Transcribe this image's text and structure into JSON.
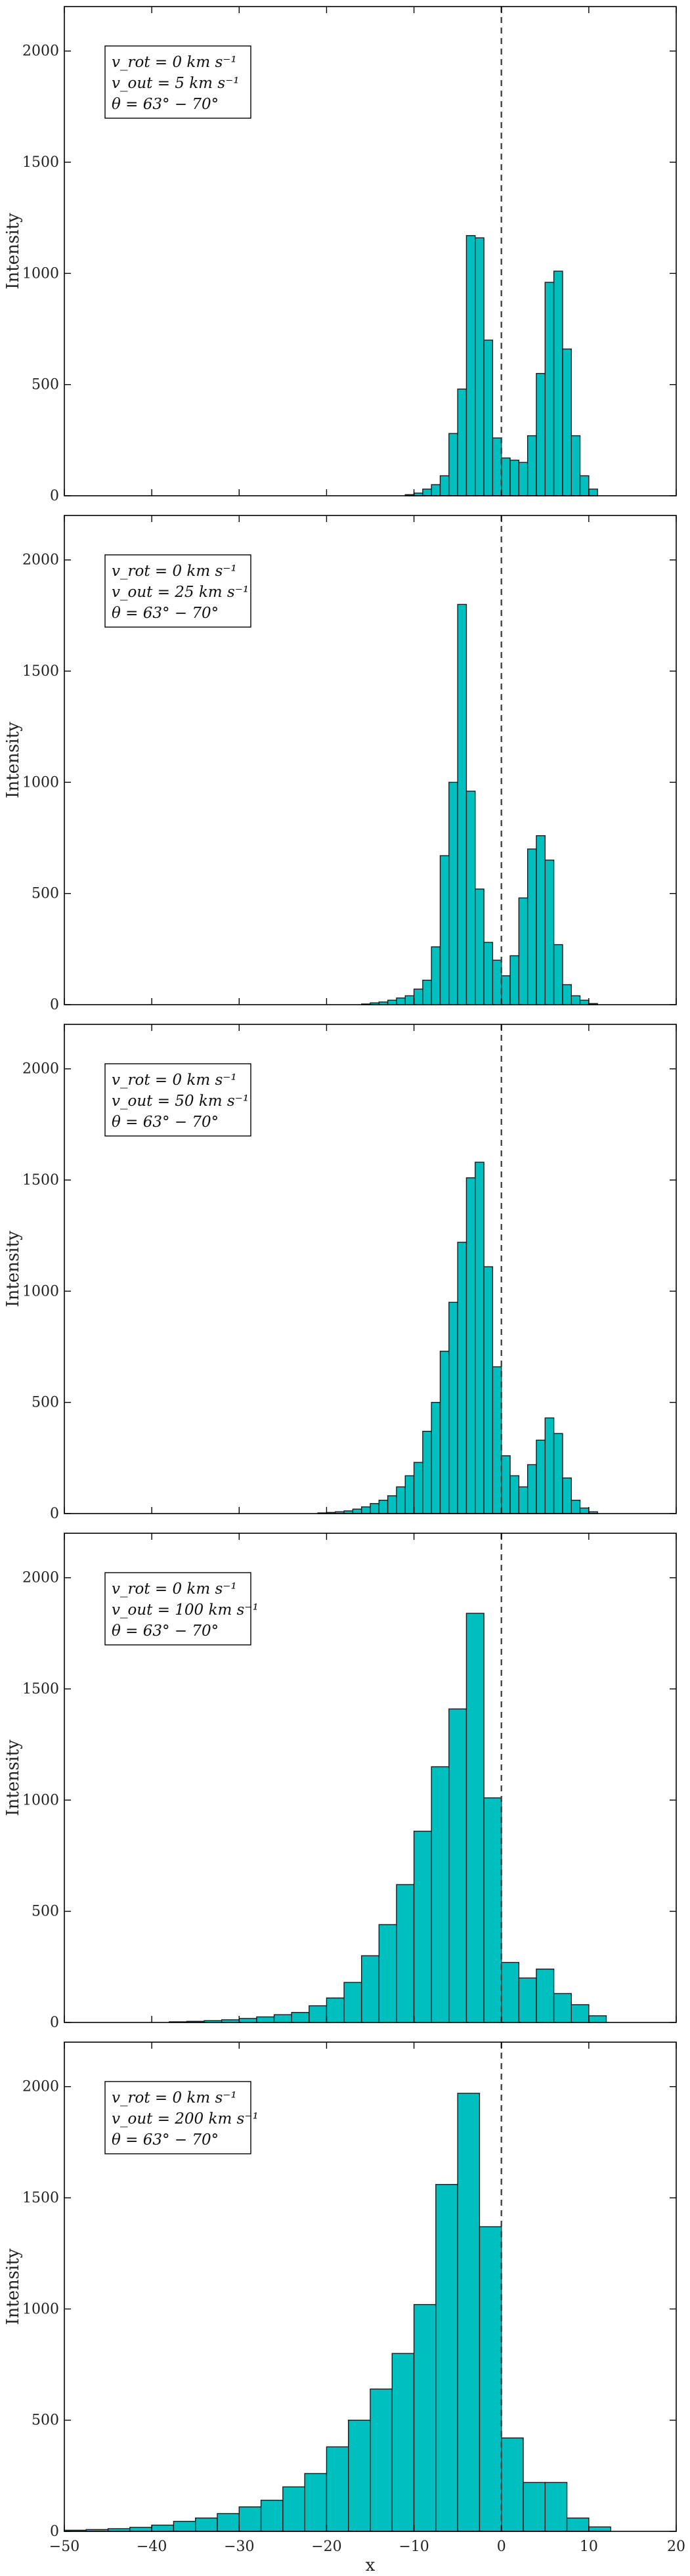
{
  "chart_data": [
    {
      "type": "histogram",
      "ylabel": "Intensity",
      "xlim": [
        -50,
        20
      ],
      "ylim": [
        0,
        2200
      ],
      "yticks": [
        0,
        500,
        1000,
        1500,
        2000
      ],
      "legend": [
        "v_rot = 0 km s⁻¹",
        "v_out = 5 km s⁻¹",
        "θ = 63° − 70°"
      ],
      "legend_position": "top-left",
      "vline_x": 0,
      "bin_width": 1,
      "bins_x0": [
        -11,
        -10,
        -9,
        -8,
        -7,
        -6,
        -5,
        -4,
        -3,
        -2,
        -1,
        0,
        1,
        2,
        3,
        4,
        5,
        6,
        7,
        8,
        9,
        10
      ],
      "values": [
        5,
        12,
        30,
        50,
        90,
        280,
        480,
        1170,
        1160,
        700,
        260,
        170,
        160,
        150,
        270,
        550,
        960,
        1010,
        660,
        270,
        90,
        30
      ]
    },
    {
      "type": "histogram",
      "ylabel": "Intensity",
      "xlim": [
        -50,
        20
      ],
      "ylim": [
        0,
        2200
      ],
      "yticks": [
        0,
        500,
        1000,
        1500,
        2000
      ],
      "legend": [
        "v_rot = 0 km s⁻¹",
        "v_out = 25 km s⁻¹",
        "θ = 63° − 70°"
      ],
      "legend_position": "top-left",
      "vline_x": 0,
      "bin_width": 1,
      "bins_x0": [
        -16,
        -15,
        -14,
        -13,
        -12,
        -11,
        -10,
        -9,
        -8,
        -7,
        -6,
        -5,
        -4,
        -3,
        -2,
        -1,
        0,
        1,
        2,
        3,
        4,
        5,
        6,
        7,
        8,
        9,
        10
      ],
      "values": [
        3,
        8,
        12,
        20,
        30,
        40,
        70,
        110,
        260,
        670,
        1000,
        1800,
        960,
        520,
        280,
        200,
        130,
        220,
        480,
        700,
        760,
        650,
        270,
        90,
        40,
        20,
        5
      ]
    },
    {
      "type": "histogram",
      "ylabel": "Intensity",
      "xlim": [
        -50,
        20
      ],
      "ylim": [
        0,
        2200
      ],
      "yticks": [
        0,
        500,
        1000,
        1500,
        2000
      ],
      "legend": [
        "v_rot = 0 km s⁻¹",
        "v_out = 50 km s⁻¹",
        "θ = 63° − 70°"
      ],
      "legend_position": "top-left",
      "vline_x": 0,
      "bin_width": 1,
      "bins_x0": [
        -21,
        -20,
        -19,
        -18,
        -17,
        -16,
        -15,
        -14,
        -13,
        -12,
        -11,
        -10,
        -9,
        -8,
        -7,
        -6,
        -5,
        -4,
        -3,
        -2,
        -1,
        0,
        1,
        2,
        3,
        4,
        5,
        6,
        7,
        8,
        9,
        10
      ],
      "values": [
        3,
        5,
        8,
        12,
        20,
        30,
        45,
        60,
        80,
        120,
        170,
        230,
        370,
        500,
        730,
        950,
        1220,
        1510,
        1580,
        1110,
        660,
        260,
        170,
        120,
        220,
        330,
        430,
        360,
        160,
        60,
        25,
        8
      ]
    },
    {
      "type": "histogram",
      "ylabel": "Intensity",
      "xlim": [
        -50,
        20
      ],
      "ylim": [
        0,
        2200
      ],
      "yticks": [
        0,
        500,
        1000,
        1500,
        2000
      ],
      "legend": [
        "v_rot = 0 km s⁻¹",
        "v_out = 100 km s⁻¹",
        "θ = 63° − 70°"
      ],
      "legend_position": "top-left",
      "vline_x": 0,
      "bin_width": 2,
      "bins_x0": [
        -38,
        -36,
        -34,
        -32,
        -30,
        -28,
        -26,
        -24,
        -22,
        -20,
        -18,
        -16,
        -14,
        -12,
        -10,
        -8,
        -6,
        -4,
        -2,
        0,
        2,
        4,
        6,
        8,
        10
      ],
      "values": [
        3,
        5,
        8,
        12,
        18,
        25,
        35,
        45,
        75,
        110,
        180,
        300,
        440,
        620,
        860,
        1150,
        1410,
        1840,
        1010,
        270,
        200,
        240,
        130,
        80,
        30
      ]
    },
    {
      "type": "histogram",
      "ylabel": "Intensity",
      "xlabel": "x",
      "xlim": [
        -50,
        20
      ],
      "ylim": [
        0,
        2200
      ],
      "yticks": [
        0,
        500,
        1000,
        1500,
        2000
      ],
      "xticks": [
        -50,
        -40,
        -30,
        -20,
        -10,
        0,
        10,
        20
      ],
      "legend": [
        "v_rot = 0 km s⁻¹",
        "v_out = 200 km s⁻¹",
        "θ = 63° − 70°"
      ],
      "legend_position": "top-left",
      "vline_x": 0,
      "bin_width": 2.5,
      "bins_x0": [
        -50,
        -47.5,
        -45,
        -42.5,
        -40,
        -37.5,
        -35,
        -32.5,
        -30,
        -27.5,
        -25,
        -22.5,
        -20,
        -17.5,
        -15,
        -12.5,
        -10,
        -7.5,
        -5,
        -2.5,
        0,
        2.5,
        5,
        7.5,
        10
      ],
      "values": [
        5,
        8,
        12,
        18,
        28,
        45,
        60,
        80,
        110,
        140,
        200,
        260,
        380,
        500,
        640,
        800,
        1020,
        1560,
        1970,
        1370,
        420,
        220,
        220,
        60,
        20
      ]
    }
  ]
}
